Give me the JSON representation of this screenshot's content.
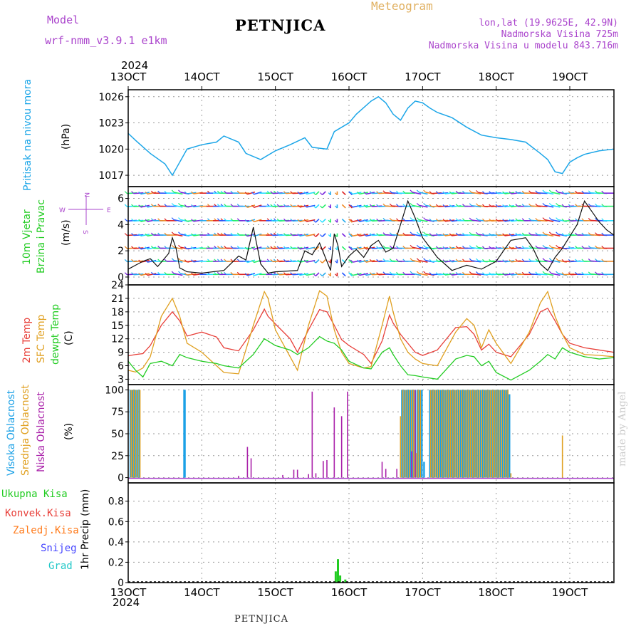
{
  "header": {
    "model_label": "Model",
    "model_name": "wrf-nmm_v3.9.1 e1km",
    "station": "PETNJICA",
    "product": "Meteogram",
    "lonlat": "lon,lat (19.9625E, 42.9N)",
    "elevation": "Nadmorska Visina 725m",
    "model_elevation": "Nadmorska Visina u modelu 843.716m",
    "year_top": "2024",
    "year_bottom": "2024",
    "footer_station": "PETNJICA",
    "credit": "made by Angel"
  },
  "colors": {
    "pressure": "#1ca6e8",
    "temp2m": "#e8403a",
    "sfc": "#e0a020",
    "dewpt": "#22cc22",
    "cloud_high": "#1aa0e6",
    "cloud_mid": "#e0a020",
    "cloud_low": "#aa22aa",
    "precip_total": "#22cc22",
    "precip_conv": "#e8403a",
    "precip_frozen": "#ff7a1a",
    "snow": "#4444ff",
    "grad": "#22c8c8",
    "model_text": "#aa44cc",
    "meteogram_text": "#e0b060"
  },
  "chart_data": [
    {
      "type": "line",
      "panel": "pressure",
      "ylabel_lines": [
        "Pritisak na nivou mora"
      ],
      "unit": "(hPa)",
      "x_ticks": [
        "13OCT",
        "14OCT",
        "15OCT",
        "16OCT",
        "17OCT",
        "18OCT",
        "19OCT"
      ],
      "xlim_days": [
        13,
        19.6
      ],
      "ylim": [
        1015.7,
        1026.8
      ],
      "yticks": [
        1017,
        1020,
        1023,
        1026
      ],
      "grid": true,
      "series": [
        {
          "values_x": [
            13.0,
            13.1,
            13.3,
            13.5,
            13.6,
            13.7,
            13.8,
            14.0,
            14.2,
            14.3,
            14.5,
            14.6,
            14.8,
            15.0,
            15.2,
            15.4,
            15.5,
            15.7,
            15.8,
            16.0,
            16.1,
            16.3,
            16.4,
            16.5,
            16.6,
            16.7,
            16.8,
            16.9,
            17.0,
            17.1,
            17.2,
            17.4,
            17.6,
            17.8,
            18.0,
            18.2,
            18.4,
            18.6,
            18.7,
            18.8,
            18.9,
            19.0,
            19.1,
            19.2,
            19.4,
            19.6
          ],
          "values_y": [
            1021.8,
            1021.0,
            1019.5,
            1018.3,
            1017.0,
            1018.5,
            1020.0,
            1020.5,
            1020.8,
            1021.5,
            1020.8,
            1019.5,
            1018.8,
            1019.8,
            1020.5,
            1021.3,
            1020.2,
            1020.0,
            1022.0,
            1023.0,
            1024.0,
            1025.5,
            1026.0,
            1025.3,
            1024.0,
            1023.3,
            1024.7,
            1025.5,
            1025.3,
            1024.7,
            1024.2,
            1023.6,
            1022.5,
            1021.6,
            1021.3,
            1021.1,
            1020.8,
            1019.5,
            1018.8,
            1017.4,
            1017.2,
            1018.5,
            1019.0,
            1019.4,
            1019.8,
            1020.0
          ]
        }
      ]
    },
    {
      "type": "line",
      "panel": "wind",
      "ylabel_lines": [
        "10m Vjetar",
        "Brzina i Pravac"
      ],
      "unit": "(m/s)",
      "compass": {
        "n": "N",
        "w": "W",
        "e": "E",
        "s": "S"
      },
      "xlim_days": [
        13,
        19.6
      ],
      "ylim": [
        -0.6,
        6.9
      ],
      "yticks": [
        0,
        2,
        4,
        6
      ],
      "grid": true,
      "series": [
        {
          "name": "speed",
          "values_x": [
            13.0,
            13.1,
            13.2,
            13.3,
            13.4,
            13.55,
            13.6,
            13.65,
            13.7,
            13.8,
            14.0,
            14.3,
            14.5,
            14.6,
            14.7,
            14.8,
            14.9,
            15.0,
            15.3,
            15.4,
            15.5,
            15.6,
            15.7,
            15.75,
            15.8,
            15.85,
            15.9,
            16.0,
            16.1,
            16.2,
            16.3,
            16.4,
            16.5,
            16.6,
            16.7,
            16.8,
            16.9,
            17.0,
            17.2,
            17.4,
            17.6,
            17.8,
            18.0,
            18.2,
            18.4,
            18.5,
            18.6,
            18.7,
            18.8,
            18.9,
            19.0,
            19.1,
            19.2,
            19.3,
            19.4,
            19.5,
            19.6
          ],
          "values_y": [
            0.6,
            0.9,
            1.2,
            1.4,
            0.8,
            1.8,
            3.0,
            2.2,
            0.7,
            0.4,
            0.3,
            0.5,
            1.6,
            1.3,
            3.8,
            1.0,
            0.3,
            0.4,
            0.5,
            2.0,
            1.7,
            2.6,
            1.2,
            0.5,
            3.3,
            2.4,
            0.8,
            1.6,
            2.1,
            1.5,
            2.4,
            2.8,
            1.9,
            2.2,
            4.0,
            5.8,
            4.5,
            3.0,
            1.5,
            0.5,
            0.9,
            0.6,
            1.2,
            2.8,
            3.0,
            2.2,
            1.0,
            0.5,
            1.5,
            2.2,
            3.1,
            4.0,
            5.8,
            5.0,
            4.2,
            3.6,
            3.2
          ]
        },
        {
          "name": "direction",
          "values_x": [
            13.0,
            13.2,
            13.4,
            13.6,
            13.8,
            14.0,
            14.3,
            14.6,
            14.8,
            15.0,
            15.3,
            15.5,
            15.7,
            15.9,
            16.1,
            16.3,
            16.5,
            16.7,
            16.9,
            17.1,
            17.3,
            17.5,
            17.7,
            17.9,
            18.1,
            18.3,
            18.5,
            18.7,
            18.9,
            19.1,
            19.3,
            19.5
          ],
          "values_y": [
            260,
            240,
            270,
            300,
            250,
            90,
            270,
            230,
            90,
            260,
            240,
            200,
            180,
            160,
            240,
            260,
            280,
            270,
            300,
            260,
            250,
            270,
            290,
            260,
            250,
            270,
            280,
            300,
            260,
            270,
            280,
            270
          ]
        }
      ]
    },
    {
      "type": "line",
      "panel": "temperature",
      "legend": [
        "2m Temp",
        "SFC Temp",
        "dewpt Temp"
      ],
      "unit": "(C)",
      "xlim_days": [
        13,
        19.6
      ],
      "ylim": [
        1.8,
        24
      ],
      "yticks": [
        3,
        6,
        9,
        12,
        15,
        18,
        21,
        24
      ],
      "grid": true,
      "series": [
        {
          "name": "2m Temp",
          "values_x": [
            13.0,
            13.1,
            13.2,
            13.3,
            13.45,
            13.6,
            13.7,
            13.8,
            14.0,
            14.2,
            14.3,
            14.5,
            14.7,
            14.85,
            14.9,
            15.0,
            15.2,
            15.3,
            15.45,
            15.6,
            15.7,
            15.8,
            15.9,
            16.0,
            16.2,
            16.3,
            16.45,
            16.55,
            16.6,
            16.7,
            16.8,
            16.9,
            17.0,
            17.2,
            17.45,
            17.6,
            17.7,
            17.8,
            17.9,
            18.0,
            18.2,
            18.45,
            18.6,
            18.7,
            18.8,
            18.9,
            19.0,
            19.2,
            19.4,
            19.6
          ],
          "values_y": [
            8.2,
            8.5,
            8.7,
            10.5,
            15.0,
            18.0,
            16.0,
            12.6,
            13.5,
            12.4,
            10.0,
            9.3,
            14.0,
            18.6,
            17.0,
            15.3,
            12.0,
            9.0,
            14.0,
            18.5,
            18.0,
            15.0,
            11.8,
            10.5,
            8.5,
            6.5,
            11.5,
            17.3,
            15.5,
            13.0,
            11.0,
            9.0,
            8.3,
            9.5,
            14.5,
            14.7,
            13.0,
            9.5,
            10.8,
            9.0,
            8.0,
            13.0,
            18.0,
            18.8,
            16.0,
            13.0,
            11.0,
            10.0,
            9.5,
            9.0
          ]
        },
        {
          "name": "SFC Temp",
          "values_x": [
            13.0,
            13.1,
            13.2,
            13.3,
            13.45,
            13.6,
            13.7,
            13.8,
            14.0,
            14.2,
            14.3,
            14.5,
            14.7,
            14.85,
            14.9,
            15.0,
            15.2,
            15.3,
            15.45,
            15.6,
            15.7,
            15.8,
            15.9,
            16.0,
            16.2,
            16.3,
            16.45,
            16.55,
            16.6,
            16.7,
            16.8,
            16.9,
            17.0,
            17.2,
            17.45,
            17.6,
            17.7,
            17.8,
            17.9,
            18.0,
            18.2,
            18.45,
            18.6,
            18.7,
            18.8,
            18.9,
            19.0,
            19.2,
            19.4,
            19.6
          ],
          "values_y": [
            5.0,
            4.6,
            5.5,
            8.0,
            17.0,
            21.0,
            17.0,
            11.0,
            9.0,
            6.0,
            4.5,
            4.2,
            15.0,
            22.5,
            21.0,
            14.0,
            8.0,
            5.0,
            15.0,
            22.7,
            21.5,
            14.0,
            9.0,
            6.5,
            5.5,
            5.8,
            15.0,
            21.5,
            18.0,
            12.0,
            9.0,
            7.5,
            6.5,
            6.0,
            13.5,
            16.5,
            15.0,
            10.0,
            14.0,
            11.0,
            6.5,
            13.5,
            20.0,
            22.5,
            17.0,
            13.0,
            10.0,
            8.5,
            8.3,
            8.0
          ]
        },
        {
          "name": "dewpt Temp",
          "values_x": [
            13.0,
            13.1,
            13.2,
            13.3,
            13.45,
            13.6,
            13.7,
            13.8,
            14.0,
            14.2,
            14.3,
            14.5,
            14.7,
            14.85,
            14.9,
            15.0,
            15.2,
            15.3,
            15.45,
            15.6,
            15.7,
            15.8,
            15.9,
            16.0,
            16.2,
            16.3,
            16.45,
            16.55,
            16.6,
            16.7,
            16.8,
            16.9,
            17.0,
            17.2,
            17.45,
            17.6,
            17.7,
            17.8,
            17.9,
            18.0,
            18.2,
            18.45,
            18.6,
            18.7,
            18.8,
            18.9,
            19.0,
            19.2,
            19.4,
            19.6
          ],
          "values_y": [
            7.0,
            5.0,
            3.5,
            6.5,
            7.0,
            6.0,
            8.5,
            7.8,
            7.0,
            6.5,
            6.0,
            5.5,
            8.5,
            12.0,
            11.5,
            10.5,
            9.5,
            8.5,
            10.0,
            12.5,
            11.5,
            11.0,
            9.5,
            7.0,
            5.5,
            5.3,
            9.0,
            10.0,
            8.5,
            6.0,
            4.0,
            3.8,
            3.5,
            3.0,
            7.5,
            8.3,
            8.0,
            6.0,
            7.0,
            4.5,
            2.8,
            5.0,
            7.0,
            8.5,
            7.5,
            10.0,
            9.0,
            8.0,
            7.5,
            7.8
          ]
        }
      ]
    },
    {
      "type": "bar",
      "panel": "clouds",
      "legend": [
        "Visoka Oblacnost",
        "Srednja Oblacnost",
        "Niska Oblacnost"
      ],
      "unit": "(%)",
      "xlim_days": [
        13,
        19.6
      ],
      "ylim": [
        -6,
        106
      ],
      "yticks": [
        0,
        25,
        50,
        75,
        100
      ],
      "grid": true,
      "series": [
        {
          "name": "Visoka Oblacnost",
          "values_x": [
            13.03,
            13.06,
            13.09,
            13.12,
            13.15,
            13.76,
            13.77,
            16.72,
            16.75,
            16.78,
            16.81,
            16.84,
            16.87,
            16.9,
            16.93,
            16.96,
            16.99,
            17.02,
            17.1,
            17.13,
            17.16,
            17.19,
            17.22,
            17.25,
            17.28,
            17.31,
            17.34,
            17.37,
            17.4,
            17.43,
            17.46,
            17.49,
            17.52,
            17.55,
            17.58,
            17.61,
            17.64,
            17.67,
            17.7,
            17.73,
            17.76,
            17.79,
            17.82,
            17.85,
            17.88,
            17.91,
            17.94,
            17.97,
            18.0,
            18.03,
            18.06,
            18.09,
            18.12,
            18.15,
            18.18
          ],
          "values_y": [
            100,
            100,
            100,
            100,
            100,
            100,
            100,
            100,
            100,
            100,
            100,
            100,
            100,
            100,
            100,
            100,
            100,
            18,
            100,
            100,
            100,
            100,
            100,
            100,
            100,
            100,
            100,
            100,
            100,
            100,
            100,
            100,
            100,
            100,
            100,
            100,
            100,
            100,
            100,
            100,
            100,
            100,
            100,
            100,
            100,
            100,
            100,
            100,
            100,
            100,
            100,
            100,
            100,
            100,
            95
          ]
        },
        {
          "name": "Srednja Oblacnost",
          "values_x": [
            13.04,
            13.07,
            13.1,
            13.13,
            13.16,
            16.7,
            16.73,
            16.76,
            16.79,
            16.82,
            16.85,
            16.88,
            16.91,
            16.94,
            16.97,
            17.11,
            17.14,
            17.17,
            17.2,
            17.23,
            17.26,
            17.29,
            17.32,
            17.35,
            17.38,
            17.41,
            17.44,
            17.47,
            17.5,
            17.53,
            17.56,
            17.59,
            17.62,
            17.65,
            17.68,
            17.71,
            17.74,
            17.77,
            17.8,
            17.83,
            17.86,
            17.89,
            17.92,
            17.95,
            17.98,
            18.01,
            18.04,
            18.07,
            18.1,
            18.13,
            18.16,
            18.2,
            18.9
          ],
          "values_y": [
            100,
            100,
            100,
            100,
            100,
            70,
            100,
            100,
            100,
            100,
            100,
            100,
            28,
            100,
            100,
            100,
            100,
            100,
            100,
            100,
            100,
            100,
            100,
            100,
            100,
            100,
            100,
            100,
            100,
            100,
            100,
            100,
            100,
            100,
            100,
            100,
            100,
            100,
            100,
            100,
            100,
            100,
            100,
            100,
            100,
            100,
            100,
            100,
            100,
            100,
            100,
            5,
            48
          ]
        },
        {
          "name": "Niska Oblacnost",
          "values_x": [
            14.5,
            14.62,
            14.67,
            15.1,
            15.25,
            15.3,
            15.45,
            15.5,
            15.55,
            15.65,
            15.7,
            15.8,
            15.9,
            15.98,
            16.45,
            16.5,
            16.65,
            16.85,
            16.9
          ],
          "values_y": [
            2,
            35,
            22,
            3,
            9,
            9,
            4,
            98,
            5,
            19,
            20,
            80,
            70,
            98,
            18,
            10,
            10,
            30,
            100
          ]
        }
      ]
    },
    {
      "type": "bar",
      "panel": "precip",
      "legend": [
        "Ukupna Kisa",
        "Konvek.Kisa",
        "Zaledj.Kisa",
        "Snijeg",
        "Grad"
      ],
      "unit": "1hr Precip (mm)",
      "x_ticks": [
        "13OCT",
        "14OCT",
        "15OCT",
        "16OCT",
        "17OCT",
        "18OCT",
        "19OCT"
      ],
      "xlim_days": [
        13,
        19.6
      ],
      "ylim": [
        0,
        0.98
      ],
      "yticks": [
        0,
        0.2,
        0.4,
        0.6,
        0.8
      ],
      "grid": true,
      "series": [
        {
          "name": "Ukupna Kisa",
          "values_x": [
            15.82,
            15.85,
            15.88,
            15.95
          ],
          "values_y": [
            0.11,
            0.23,
            0.07,
            0.03
          ]
        }
      ]
    }
  ]
}
